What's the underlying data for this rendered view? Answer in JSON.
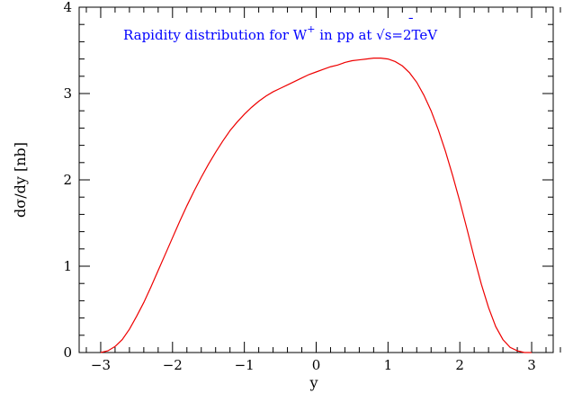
{
  "chart_data": {
    "type": "line",
    "title": {
      "prefix": "Rapidity distribution for W",
      "superscript": "+",
      "middle": " in p",
      "antiproton": "p",
      "antiproton_bar": "¯",
      "suffix": " at √s=2TeV"
    },
    "xlabel": "y",
    "ylabel": "dσ/dy [nb]",
    "xlim": [
      -3.3,
      3.3
    ],
    "ylim": [
      0,
      4
    ],
    "xticks": [
      -3,
      -2,
      -1,
      0,
      1,
      2,
      3
    ],
    "xtick_labels": [
      "−3",
      "−2",
      "−1",
      "0",
      "1",
      "2",
      "3"
    ],
    "yticks": [
      0,
      1,
      2,
      3,
      4
    ],
    "ytick_labels": [
      "0",
      "1",
      "2",
      "3",
      "4"
    ],
    "grid": false,
    "series": [
      {
        "color": "#ee0000",
        "x": [
          -3.0,
          -2.9,
          -2.8,
          -2.7,
          -2.6,
          -2.5,
          -2.4,
          -2.3,
          -2.2,
          -2.1,
          -2.0,
          -1.9,
          -1.8,
          -1.7,
          -1.6,
          -1.5,
          -1.4,
          -1.3,
          -1.2,
          -1.1,
          -1.0,
          -0.9,
          -0.8,
          -0.7,
          -0.6,
          -0.5,
          -0.4,
          -0.3,
          -0.2,
          -0.1,
          0.0,
          0.1,
          0.2,
          0.3,
          0.4,
          0.5,
          0.6,
          0.7,
          0.8,
          0.9,
          1.0,
          1.1,
          1.2,
          1.3,
          1.4,
          1.5,
          1.6,
          1.7,
          1.8,
          1.9,
          2.0,
          2.1,
          2.2,
          2.3,
          2.4,
          2.5,
          2.6,
          2.7,
          2.8,
          2.9,
          3.0
        ],
        "y": [
          0.0,
          0.02,
          0.07,
          0.15,
          0.27,
          0.42,
          0.58,
          0.76,
          0.95,
          1.14,
          1.33,
          1.52,
          1.7,
          1.87,
          2.03,
          2.18,
          2.32,
          2.45,
          2.57,
          2.67,
          2.76,
          2.84,
          2.91,
          2.97,
          3.02,
          3.06,
          3.1,
          3.14,
          3.18,
          3.22,
          3.25,
          3.28,
          3.31,
          3.33,
          3.36,
          3.38,
          3.39,
          3.4,
          3.41,
          3.41,
          3.4,
          3.37,
          3.32,
          3.24,
          3.13,
          2.98,
          2.8,
          2.58,
          2.33,
          2.05,
          1.75,
          1.43,
          1.1,
          0.79,
          0.52,
          0.3,
          0.15,
          0.06,
          0.02,
          0.0,
          0.0
        ]
      }
    ]
  }
}
